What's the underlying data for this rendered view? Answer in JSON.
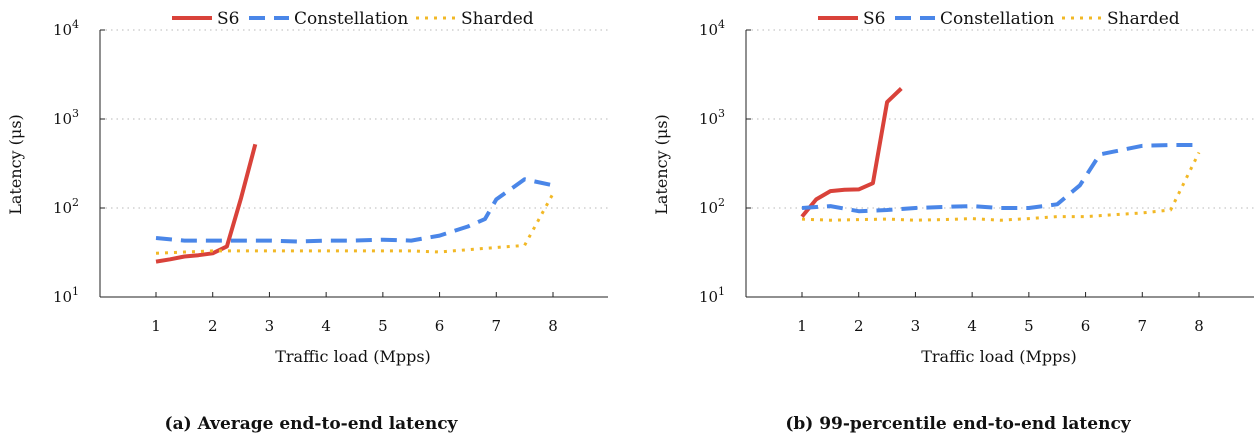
{
  "chart_data": [
    {
      "type": "line",
      "caption": "(a) Average end-to-end latency",
      "xlabel": "Traffic load (Mpps)",
      "ylabel": "Latency (μs)",
      "xticks": [
        1,
        2,
        3,
        4,
        5,
        6,
        7,
        8
      ],
      "yscale": "log",
      "ylim": [
        10,
        10000
      ],
      "yticks": [
        {
          "base": "10",
          "exp": "1"
        },
        {
          "base": "10",
          "exp": "2"
        },
        {
          "base": "10",
          "exp": "3"
        },
        {
          "base": "10",
          "exp": "4"
        }
      ],
      "grid": "horizontal dotted",
      "legend": "top",
      "series": [
        {
          "name": "S6",
          "color": "#d9423a",
          "style": "solid",
          "x": [
            1,
            1.25,
            1.5,
            1.75,
            2,
            2.25,
            2.5,
            2.75
          ],
          "y": [
            25,
            26.5,
            28.5,
            29.5,
            31,
            37,
            130,
            520
          ]
        },
        {
          "name": "Constellation",
          "color": "#4a86e8",
          "style": "dashed",
          "x": [
            1,
            1.5,
            2,
            2.5,
            3,
            3.5,
            4,
            4.5,
            5,
            5.5,
            6,
            6.5,
            6.8,
            7,
            7.5,
            8
          ],
          "y": [
            46,
            43,
            43,
            43,
            43,
            42,
            43,
            43,
            44,
            43,
            49,
            62,
            75,
            125,
            210,
            180
          ]
        },
        {
          "name": "Sharded",
          "color": "#f2b825",
          "style": "dotted",
          "x": [
            1,
            1.5,
            2,
            2.5,
            3,
            3.5,
            4,
            4.5,
            5,
            5.5,
            6,
            6.5,
            7,
            7.5,
            8
          ],
          "y": [
            31,
            32,
            33,
            33,
            33,
            33,
            33,
            33,
            33,
            33,
            32,
            34,
            36,
            38,
            145
          ]
        }
      ]
    },
    {
      "type": "line",
      "caption": "(b) 99-percentile end-to-end latency",
      "xlabel": "Traffic load (Mpps)",
      "ylabel": "Latency (μs)",
      "xticks": [
        1,
        2,
        3,
        4,
        5,
        6,
        7,
        8
      ],
      "yscale": "log",
      "ylim": [
        10,
        10000
      ],
      "yticks": [
        {
          "base": "10",
          "exp": "1"
        },
        {
          "base": "10",
          "exp": "2"
        },
        {
          "base": "10",
          "exp": "3"
        },
        {
          "base": "10",
          "exp": "4"
        }
      ],
      "grid": "horizontal dotted",
      "legend": "top",
      "series": [
        {
          "name": "S6",
          "color": "#d9423a",
          "style": "solid",
          "x": [
            1,
            1.25,
            1.5,
            1.75,
            2,
            2.25,
            2.5,
            2.75
          ],
          "y": [
            80,
            125,
            155,
            160,
            162,
            190,
            1550,
            2200
          ]
        },
        {
          "name": "Constellation",
          "color": "#4a86e8",
          "style": "dashed",
          "x": [
            1,
            1.5,
            2,
            2.5,
            3,
            3.5,
            4,
            4.5,
            5,
            5.5,
            5.9,
            6.25,
            6.5,
            7,
            7.5,
            8
          ],
          "y": [
            100,
            105,
            92,
            95,
            100,
            103,
            105,
            100,
            100,
            110,
            180,
            400,
            430,
            500,
            510,
            510
          ]
        },
        {
          "name": "Sharded",
          "color": "#f2b825",
          "style": "dotted",
          "x": [
            1,
            1.5,
            2,
            2.5,
            3,
            3.5,
            4,
            4.5,
            5,
            5.5,
            6,
            6.5,
            7,
            7.5,
            8
          ],
          "y": [
            75,
            73,
            74,
            75,
            73,
            74,
            76,
            73,
            76,
            80,
            80,
            84,
            88,
            95,
            420
          ]
        }
      ]
    }
  ]
}
